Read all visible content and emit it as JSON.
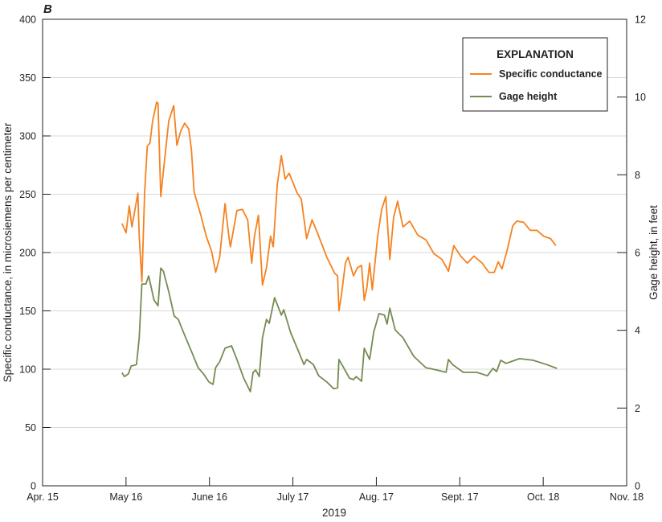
{
  "chart_data": {
    "type": "line",
    "panel_label": "B",
    "xlabel": "2019",
    "ylabel": "Specific conductance, in microsiemens per centimeter",
    "y2label": "Gage height, in feet",
    "x_units": "days since Apr. 15, 2019",
    "xlim": [
      0,
      217
    ],
    "ylim": [
      0,
      400
    ],
    "y2lim": [
      0,
      12
    ],
    "x_ticks": [
      {
        "day": 0,
        "label": "Apr. 15"
      },
      {
        "day": 31,
        "label": "May 16"
      },
      {
        "day": 62,
        "label": "June 16"
      },
      {
        "day": 93,
        "label": "July 17"
      },
      {
        "day": 124,
        "label": "Aug. 17"
      },
      {
        "day": 155,
        "label": "Sept. 17"
      },
      {
        "day": 186,
        "label": "Oct. 18"
      },
      {
        "day": 217,
        "label": "Nov. 18"
      }
    ],
    "y_ticks": [
      0,
      50,
      100,
      150,
      200,
      250,
      300,
      350,
      400
    ],
    "y2_ticks": [
      0,
      2,
      4,
      6,
      8,
      10,
      12
    ],
    "grid": true,
    "legend": {
      "title": "EXPLANATION",
      "placement": "top-right"
    },
    "series": [
      {
        "name": "Specific conductance",
        "axis": "left",
        "color": "#f58220",
        "points": [
          [
            29.5,
            225
          ],
          [
            31.0,
            217
          ],
          [
            32.2,
            240
          ],
          [
            33.2,
            222
          ],
          [
            35.4,
            251
          ],
          [
            35.9,
            214
          ],
          [
            36.9,
            175
          ],
          [
            37.9,
            251
          ],
          [
            38.9,
            291
          ],
          [
            39.9,
            294
          ],
          [
            40.9,
            313
          ],
          [
            42.4,
            329
          ],
          [
            42.9,
            328
          ],
          [
            43.9,
            248
          ],
          [
            44.9,
            270
          ],
          [
            46.9,
            313
          ],
          [
            48.7,
            326
          ],
          [
            49.9,
            292
          ],
          [
            51.3,
            304
          ],
          [
            52.8,
            311
          ],
          [
            54.3,
            306
          ],
          [
            55.3,
            288
          ],
          [
            56.3,
            252
          ],
          [
            58.8,
            232
          ],
          [
            60.8,
            214
          ],
          [
            62.8,
            201
          ],
          [
            64.3,
            183
          ],
          [
            65.8,
            196
          ],
          [
            67.8,
            242
          ],
          [
            69.3,
            212
          ],
          [
            69.8,
            205
          ],
          [
            72.2,
            236
          ],
          [
            74.2,
            237
          ],
          [
            76.2,
            228
          ],
          [
            77.7,
            191
          ],
          [
            78.7,
            214
          ],
          [
            80.2,
            232
          ],
          [
            81.7,
            172
          ],
          [
            83.2,
            187
          ],
          [
            84.7,
            214
          ],
          [
            85.7,
            205
          ],
          [
            87.2,
            258
          ],
          [
            88.7,
            283
          ],
          [
            90.1,
            263
          ],
          [
            91.6,
            268
          ],
          [
            94.6,
            251
          ],
          [
            96.1,
            246
          ],
          [
            98.1,
            212
          ],
          [
            100.1,
            228
          ],
          [
            102.1,
            217
          ],
          [
            104.1,
            205
          ],
          [
            105.6,
            196
          ],
          [
            108.6,
            182
          ],
          [
            109.6,
            180
          ],
          [
            110.1,
            150
          ],
          [
            111.0,
            163
          ],
          [
            112.5,
            191
          ],
          [
            113.5,
            196
          ],
          [
            115.5,
            180
          ],
          [
            117.0,
            187
          ],
          [
            118.5,
            189
          ],
          [
            119.5,
            159
          ],
          [
            120.5,
            170
          ],
          [
            121.5,
            191
          ],
          [
            122.5,
            168
          ],
          [
            124.5,
            214
          ],
          [
            126.0,
            237
          ],
          [
            127.5,
            248
          ],
          [
            129.0,
            194
          ],
          [
            130.4,
            230
          ],
          [
            131.9,
            244
          ],
          [
            133.9,
            222
          ],
          [
            136.4,
            227
          ],
          [
            139.4,
            215
          ],
          [
            142.4,
            211
          ],
          [
            145.4,
            199
          ],
          [
            148.4,
            194
          ],
          [
            150.8,
            184
          ],
          [
            152.8,
            206
          ],
          [
            155.3,
            197
          ],
          [
            157.8,
            191
          ],
          [
            160.3,
            197
          ],
          [
            163.3,
            191
          ],
          [
            165.8,
            183
          ],
          [
            167.8,
            183
          ],
          [
            169.3,
            192
          ],
          [
            170.7,
            186
          ],
          [
            172.7,
            203
          ],
          [
            174.7,
            223
          ],
          [
            176.2,
            227
          ],
          [
            178.7,
            226
          ],
          [
            181.2,
            219
          ],
          [
            183.7,
            219
          ],
          [
            186.2,
            214
          ],
          [
            188.7,
            212
          ],
          [
            190.7,
            206
          ]
        ]
      },
      {
        "name": "Gage height",
        "axis": "right",
        "color": "#758b53",
        "points": [
          [
            29.5,
            2.91
          ],
          [
            30.4,
            2.81
          ],
          [
            31.9,
            2.88
          ],
          [
            32.9,
            3.08
          ],
          [
            34.9,
            3.12
          ],
          [
            35.9,
            3.81
          ],
          [
            36.9,
            5.19
          ],
          [
            38.4,
            5.19
          ],
          [
            39.4,
            5.4
          ],
          [
            41.4,
            4.78
          ],
          [
            42.9,
            4.63
          ],
          [
            43.9,
            5.6
          ],
          [
            44.9,
            5.52
          ],
          [
            46.9,
            4.99
          ],
          [
            48.9,
            4.37
          ],
          [
            50.4,
            4.28
          ],
          [
            52.8,
            3.87
          ],
          [
            55.3,
            3.46
          ],
          [
            57.8,
            3.04
          ],
          [
            59.8,
            2.88
          ],
          [
            61.8,
            2.67
          ],
          [
            63.3,
            2.61
          ],
          [
            64.3,
            3.04
          ],
          [
            65.8,
            3.19
          ],
          [
            67.8,
            3.54
          ],
          [
            70.2,
            3.6
          ],
          [
            72.2,
            3.25
          ],
          [
            74.7,
            2.77
          ],
          [
            77.2,
            2.42
          ],
          [
            78.2,
            2.92
          ],
          [
            79.2,
            2.98
          ],
          [
            80.5,
            2.81
          ],
          [
            81.7,
            3.81
          ],
          [
            83.2,
            4.28
          ],
          [
            84.2,
            4.18
          ],
          [
            86.2,
            4.84
          ],
          [
            88.7,
            4.39
          ],
          [
            89.6,
            4.53
          ],
          [
            92.1,
            3.95
          ],
          [
            94.6,
            3.54
          ],
          [
            97.1,
            3.12
          ],
          [
            98.1,
            3.25
          ],
          [
            100.6,
            3.12
          ],
          [
            102.6,
            2.83
          ],
          [
            105.6,
            2.67
          ],
          [
            108.1,
            2.5
          ],
          [
            109.6,
            2.52
          ],
          [
            110.1,
            3.25
          ],
          [
            111.5,
            3.08
          ],
          [
            114.0,
            2.77
          ],
          [
            115.5,
            2.73
          ],
          [
            116.5,
            2.81
          ],
          [
            118.5,
            2.69
          ],
          [
            119.5,
            3.54
          ],
          [
            121.5,
            3.25
          ],
          [
            123.0,
            3.95
          ],
          [
            125.0,
            4.43
          ],
          [
            127.0,
            4.39
          ],
          [
            128.0,
            4.16
          ],
          [
            129.0,
            4.57
          ],
          [
            131.0,
            4.01
          ],
          [
            133.9,
            3.81
          ],
          [
            137.9,
            3.33
          ],
          [
            142.4,
            3.04
          ],
          [
            146.4,
            2.98
          ],
          [
            149.9,
            2.92
          ],
          [
            150.8,
            3.25
          ],
          [
            152.3,
            3.12
          ],
          [
            156.3,
            2.92
          ],
          [
            161.3,
            2.92
          ],
          [
            165.3,
            2.83
          ],
          [
            167.3,
            3.02
          ],
          [
            168.7,
            2.94
          ],
          [
            170.2,
            3.23
          ],
          [
            172.2,
            3.15
          ],
          [
            177.2,
            3.27
          ],
          [
            182.2,
            3.23
          ],
          [
            187.2,
            3.12
          ],
          [
            191.1,
            3.02
          ]
        ]
      }
    ]
  }
}
